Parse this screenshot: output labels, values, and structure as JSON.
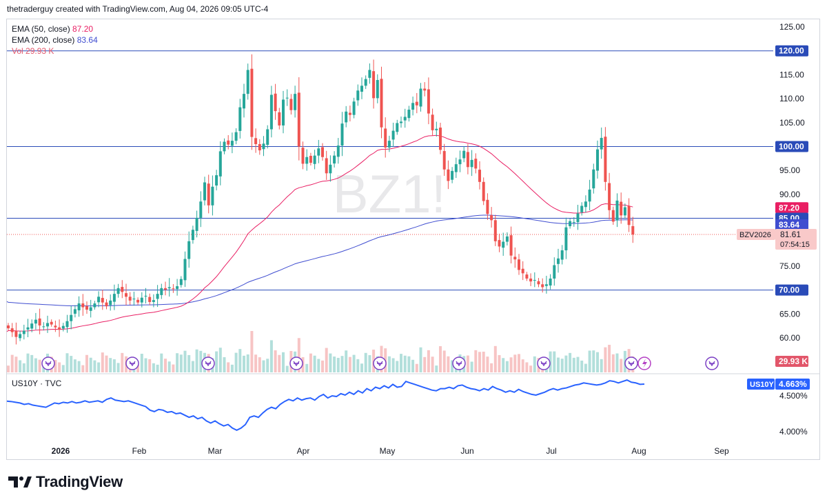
{
  "header": {
    "text": "thetraderguy created with TradingView.com, Aug 04, 2026 09:05 UTC-4"
  },
  "legend": {
    "ema50_label": "EMA (50, close)",
    "ema50_value": "87.20",
    "ema200_label": "EMA (200, close)",
    "ema200_value": "83.64",
    "vol_label": "Vol",
    "vol_value": "29.93 K"
  },
  "watermark": "BZ1!",
  "lower_legend": "US10Y · TVC",
  "footer": {
    "brand": "TradingView"
  },
  "colors": {
    "up": "#26a69a",
    "down": "#ef5350",
    "ema50": "#e91e63",
    "ema200": "#3f4dd0",
    "hline": "#2a4bb8",
    "yield_line": "#2962ff",
    "vol_up": "#b2dfdb",
    "vol_down": "#f7c4c4"
  },
  "chart_data": [
    {
      "type": "candlestick",
      "symbol": "BZ1!",
      "y_axis_ticks": [
        "125.00",
        "120.00",
        "115.00",
        "110.00",
        "105.00",
        "100.00",
        "95.00",
        "90.00",
        "85.00",
        "80.00",
        "75.00",
        "70.00",
        "65.00",
        "60.00"
      ],
      "ylim": [
        57,
        126
      ],
      "x_axis_labels": [
        "2026",
        "Feb",
        "Mar",
        "Apr",
        "May",
        "Jun",
        "Jul",
        "Aug",
        "Sep"
      ],
      "price_labels": [
        {
          "text": "120.00",
          "value": 120,
          "color": "#2a4bb8"
        },
        {
          "text": "100.00",
          "value": 100,
          "color": "#2a4bb8"
        },
        {
          "text": "87.20",
          "value": 87.2,
          "color": "#e91e63"
        },
        {
          "text": "85.00",
          "value": 85,
          "color": "#2a4bb8"
        },
        {
          "text": "83.64",
          "value": 83.64,
          "color": "#3f4dd0"
        },
        {
          "text": "70.00",
          "value": 70,
          "color": "#2a4bb8"
        },
        {
          "text": "29.93 K",
          "value": "volume",
          "color": "#e2566a"
        }
      ],
      "current_price": {
        "symbol_tag": "BZV2026",
        "price": "81.61",
        "countdown": "07:54:15",
        "value": 81.61
      },
      "horizontal_lines": [
        120,
        100,
        85,
        70
      ],
      "closes": [
        62,
        61.2,
        60.2,
        60.8,
        61.5,
        62.2,
        63,
        63.8,
        62.6,
        62.4,
        63.1,
        62.8,
        62.2,
        61.7,
        62.5,
        63.5,
        64.8,
        66,
        67.2,
        66.4,
        65.9,
        66.4,
        67.2,
        68.6,
        67.4,
        66.6,
        67.8,
        69.2,
        70.4,
        69.6,
        68.6,
        67.8,
        68.2,
        67.4,
        68.4,
        68.8,
        67.5,
        67.9,
        69.2,
        70.4,
        70.1,
        70.6,
        70.2,
        70.8,
        72.3,
        76.5,
        80.2,
        82.6,
        85.1,
        88.5,
        92.5,
        87.7,
        91.6,
        94,
        99,
        101,
        100.4,
        101.2,
        103,
        108.2,
        111,
        116,
        102,
        100.5,
        99.2,
        100.6,
        103.6,
        110.8,
        107.4,
        104.4,
        109.8,
        110.2,
        107.6,
        111,
        100,
        96.4,
        97.8,
        96.6,
        98.1,
        99.6,
        97.8,
        94.4,
        96.2,
        98.1,
        100.2,
        104.8,
        107.3,
        106.6,
        109.4,
        111.7,
        112.7,
        114.1,
        116,
        110.1,
        113.9,
        104,
        99.8,
        101.2,
        103.3,
        104.9,
        105.2,
        106.2,
        107.7,
        109.1,
        108.6,
        112.1,
        111.7,
        106.9,
        103.4,
        103.7,
        99.3,
        95.2,
        92.8,
        94.9,
        96.3,
        97.3,
        99.1,
        95.7,
        97.2,
        95.4,
        92.6,
        88.6,
        85.9,
        84.6,
        80.2,
        79.1,
        80.1,
        81.2,
        77.2,
        76.4,
        74.2,
        73.5,
        72.4,
        71.8,
        72.1,
        71.2,
        70.6,
        71.2,
        72.4,
        75.2,
        76.6,
        78.3,
        83.1,
        84.4,
        84.2,
        86,
        87.6,
        88.5,
        91,
        95.2,
        99.4,
        101.8,
        92.6,
        86.7,
        84.3,
        88.7,
        85.6,
        87.3,
        83.6,
        81.61
      ],
      "volume_in_view": "29.93 K"
    },
    {
      "type": "line",
      "symbol": "US10Y",
      "source": "TVC",
      "y_axis_ticks": [
        "4.500%",
        "4.000%"
      ],
      "ylim": [
        3.96,
        4.72
      ],
      "last_value": "4.663%",
      "tag": "US10Y",
      "values": [
        4.425,
        4.42,
        4.41,
        4.4,
        4.38,
        4.39,
        4.37,
        4.36,
        4.35,
        4.34,
        4.37,
        4.4,
        4.39,
        4.41,
        4.4,
        4.42,
        4.4,
        4.41,
        4.43,
        4.41,
        4.42,
        4.43,
        4.41,
        4.45,
        4.47,
        4.44,
        4.43,
        4.42,
        4.43,
        4.41,
        4.39,
        4.37,
        4.35,
        4.3,
        4.28,
        4.31,
        4.3,
        4.27,
        4.28,
        4.25,
        4.26,
        4.23,
        4.2,
        4.22,
        4.18,
        4.2,
        4.15,
        4.12,
        4.15,
        4.11,
        4.08,
        4.1,
        4.05,
        4.02,
        4.05,
        4.1,
        4.2,
        4.22,
        4.2,
        4.26,
        4.31,
        4.34,
        4.32,
        4.38,
        4.42,
        4.45,
        4.43,
        4.47,
        4.44,
        4.46,
        4.47,
        4.44,
        4.49,
        4.52,
        4.47,
        4.5,
        4.49,
        4.53,
        4.51,
        4.55,
        4.52,
        4.57,
        4.54,
        4.6,
        4.57,
        4.62,
        4.6,
        4.64,
        4.61,
        4.66,
        4.62,
        4.63,
        4.7,
        4.68,
        4.66,
        4.64,
        4.62,
        4.6,
        4.58,
        4.57,
        4.6,
        4.6,
        4.62,
        4.6,
        4.64,
        4.65,
        4.62,
        4.6,
        4.59,
        4.57,
        4.6,
        4.58,
        4.63,
        4.6,
        4.58,
        4.55,
        4.57,
        4.55,
        4.59,
        4.56,
        4.54,
        4.52,
        4.51,
        4.53,
        4.55,
        4.58,
        4.6,
        4.58,
        4.6,
        4.61,
        4.63,
        4.65,
        4.66,
        4.68,
        4.67,
        4.66,
        4.65,
        4.66,
        4.68,
        4.71,
        4.7,
        4.68,
        4.7,
        4.72,
        4.69,
        4.68,
        4.66,
        4.663
      ]
    }
  ]
}
